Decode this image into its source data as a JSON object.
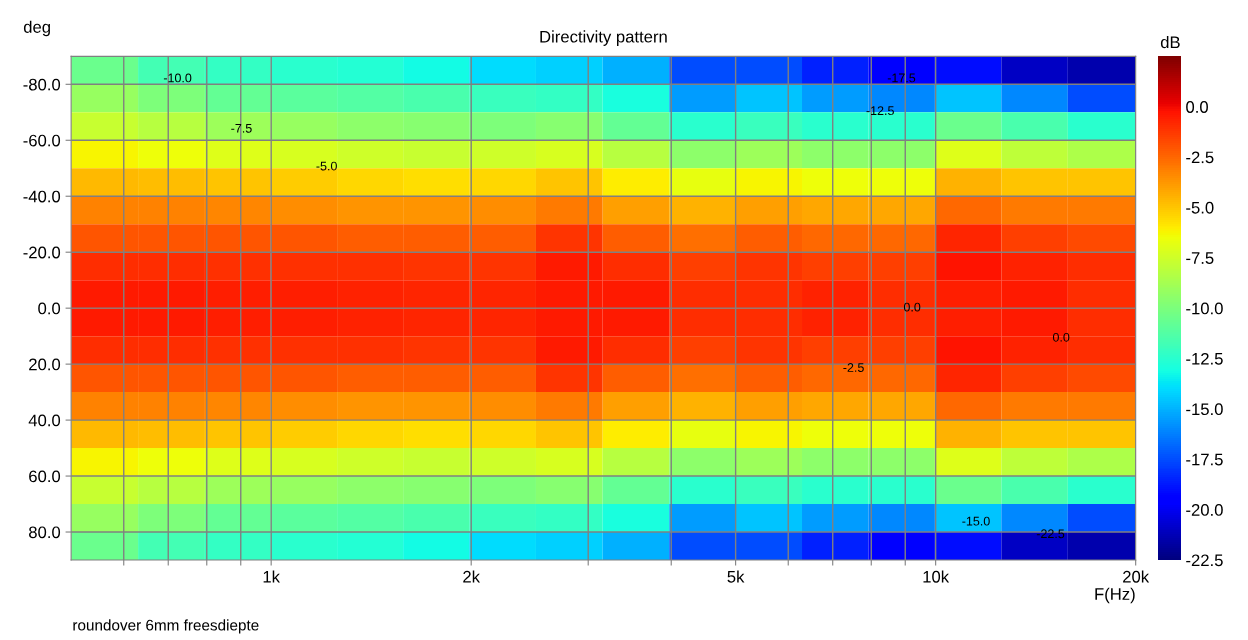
{
  "chart_data": {
    "type": "heatmap",
    "title": "Directivity pattern",
    "xlabel": "F(Hz)",
    "ylabel": "deg",
    "clabel": "dB",
    "x": [
      560,
      710,
      890,
      1120,
      1410,
      1770,
      2230,
      2810,
      3540,
      4460,
      5610,
      7060,
      8890,
      11190,
      14090,
      17740
    ],
    "y": [
      -85,
      -75,
      -65,
      -55,
      -45,
      -35,
      -25,
      -15,
      -5,
      5,
      15,
      25,
      35,
      45,
      55,
      65,
      75,
      85
    ],
    "cells": [
      [
        -10.5,
        -11.7,
        -12.2,
        -12.5,
        -12.7,
        -13.2,
        -14,
        -14.2,
        -15,
        -17.5,
        -17.5,
        -18.5,
        -19.5,
        -19,
        -21,
        -21.5
      ],
      [
        -9.2,
        -10,
        -10.7,
        -11,
        -11.2,
        -11.5,
        -12,
        -12.2,
        -13,
        -15.5,
        -14.5,
        -15.5,
        -16,
        -14.5,
        -16,
        -17.5
      ],
      [
        -7.7,
        -8.2,
        -9,
        -9.2,
        -9.5,
        -9.7,
        -10,
        -9.7,
        -10.7,
        -12.5,
        -12,
        -12.5,
        -12.5,
        -10.5,
        -11.5,
        -12.5
      ],
      [
        -6.2,
        -6.5,
        -7,
        -7.2,
        -7.5,
        -7.7,
        -7.5,
        -7.2,
        -8.2,
        -9.5,
        -9,
        -9.5,
        -9.5,
        -7,
        -8,
        -8.5
      ],
      [
        -4.7,
        -4.8,
        -5,
        -5.2,
        -5.5,
        -5.7,
        -5.5,
        -5,
        -6,
        -6.7,
        -6.2,
        -6.5,
        -6.5,
        -4.5,
        -5,
        -5
      ],
      [
        -3.2,
        -3.2,
        -3.3,
        -3.5,
        -3.7,
        -3.7,
        -3.5,
        -3,
        -4,
        -4.5,
        -4,
        -4.2,
        -4.2,
        -2.5,
        -3,
        -3
      ],
      [
        -2,
        -2,
        -2,
        -2,
        -2.2,
        -2.2,
        -2.2,
        -1.2,
        -2.2,
        -2.7,
        -2.2,
        -2.5,
        -2.5,
        -0.8,
        -1.5,
        -1.7
      ],
      [
        -1,
        -1,
        -1.1,
        -1.1,
        -1.1,
        -1.2,
        -1.2,
        -0.5,
        -1,
        -1.5,
        -1.2,
        -1.5,
        -1.5,
        -0.3,
        -0.7,
        -1
      ],
      [
        -0.5,
        -0.5,
        -0.6,
        -0.6,
        -0.7,
        -0.8,
        -0.8,
        -0.5,
        -0.5,
        -1,
        -1,
        -0.7,
        -1,
        -0.6,
        -0.5,
        -1
      ],
      [
        -0.5,
        -0.5,
        -0.6,
        -0.6,
        -0.7,
        -0.8,
        -0.8,
        -0.5,
        -0.5,
        -1,
        -1,
        -0.7,
        -1,
        -0.6,
        -0.5,
        -1
      ],
      [
        -1,
        -1,
        -1.1,
        -1.1,
        -1.1,
        -1.2,
        -1.2,
        -0.5,
        -1,
        -1.5,
        -1.2,
        -1.5,
        -1.5,
        -0.3,
        -0.7,
        -1
      ],
      [
        -2,
        -2,
        -2,
        -2,
        -2.2,
        -2.2,
        -2.2,
        -1.2,
        -2.2,
        -2.7,
        -2.2,
        -2.5,
        -2.5,
        -0.8,
        -1.5,
        -1.7
      ],
      [
        -3.2,
        -3.2,
        -3.3,
        -3.5,
        -3.7,
        -3.7,
        -3.5,
        -3,
        -4,
        -4.5,
        -4,
        -4.2,
        -4.2,
        -2.5,
        -3,
        -3
      ],
      [
        -4.7,
        -4.8,
        -5,
        -5.2,
        -5.5,
        -5.7,
        -5.5,
        -5,
        -6,
        -6.7,
        -6.2,
        -6.5,
        -6.5,
        -4.5,
        -5,
        -5
      ],
      [
        -6.2,
        -6.5,
        -7,
        -7.2,
        -7.5,
        -7.7,
        -7.5,
        -7.2,
        -8.2,
        -9.5,
        -9,
        -9.5,
        -9.5,
        -7,
        -8,
        -8.5
      ],
      [
        -7.7,
        -8.2,
        -9,
        -9.2,
        -9.5,
        -9.7,
        -10,
        -9.7,
        -10.7,
        -12.5,
        -12,
        -12.5,
        -12.5,
        -10.5,
        -11.5,
        -12.5
      ],
      [
        -9.2,
        -10,
        -10.7,
        -11,
        -11.2,
        -11.5,
        -12,
        -12.2,
        -13,
        -15.5,
        -14.5,
        -15.5,
        -16,
        -14.5,
        -16,
        -17.5
      ],
      [
        -10.5,
        -11.7,
        -12.2,
        -12.5,
        -12.7,
        -13.2,
        -14,
        -14.2,
        -15,
        -17.5,
        -17.5,
        -18.5,
        -19.5,
        -19,
        -21,
        -21.5
      ]
    ],
    "log": "x",
    "xlim": [
      500,
      20000
    ],
    "xticks": [
      {
        "value": 600,
        "label": null
      },
      {
        "value": 700,
        "label": null
      },
      {
        "value": 800,
        "label": null
      },
      {
        "value": 900,
        "label": null
      },
      {
        "value": 1000,
        "label": "1k"
      },
      {
        "value": 2000,
        "label": "2k"
      },
      {
        "value": 3000,
        "label": null
      },
      {
        "value": 4000,
        "label": null
      },
      {
        "value": 5000,
        "label": "5k"
      },
      {
        "value": 6000,
        "label": null
      },
      {
        "value": 7000,
        "label": null
      },
      {
        "value": 8000,
        "label": null
      },
      {
        "value": 9000,
        "label": null
      },
      {
        "value": 10000,
        "label": "10k"
      },
      {
        "value": 20000,
        "label": "20k"
      }
    ],
    "ylim": [
      90,
      -90
    ],
    "yticks": [
      {
        "value": -80,
        "label": "-80.0"
      },
      {
        "value": -60,
        "label": "-60.0"
      },
      {
        "value": -40,
        "label": "-40.0"
      },
      {
        "value": -20,
        "label": "-20.0"
      },
      {
        "value": 0,
        "label": "0.0"
      },
      {
        "value": 20,
        "label": "20.0"
      },
      {
        "value": 40,
        "label": "40.0"
      },
      {
        "value": 60,
        "label": "60.0"
      },
      {
        "value": 80,
        "label": "80.0"
      }
    ],
    "clim": [
      -22.5,
      2.5
    ],
    "cticks": [
      {
        "value": 0,
        "label": "0.0"
      },
      {
        "value": -2.5,
        "label": "-2.5"
      },
      {
        "value": -5,
        "label": "-5.0"
      },
      {
        "value": -7.5,
        "label": "-7.5"
      },
      {
        "value": -10,
        "label": "-10.0"
      },
      {
        "value": -12.5,
        "label": "-12.5"
      },
      {
        "value": -15,
        "label": "-15.0"
      },
      {
        "value": -17.5,
        "label": "-17.5"
      },
      {
        "value": -20,
        "label": "-20.0"
      },
      {
        "value": -22.5,
        "label": "-22.5"
      }
    ],
    "grid": true,
    "annotations": [
      "-10.0",
      "-7.5",
      "-5.0",
      "-17.5",
      "-12.5",
      "0.0",
      "-2.5",
      "0.0",
      "-15.0",
      "-22.5",
      "roundover 6mm freesdiepte"
    ]
  }
}
